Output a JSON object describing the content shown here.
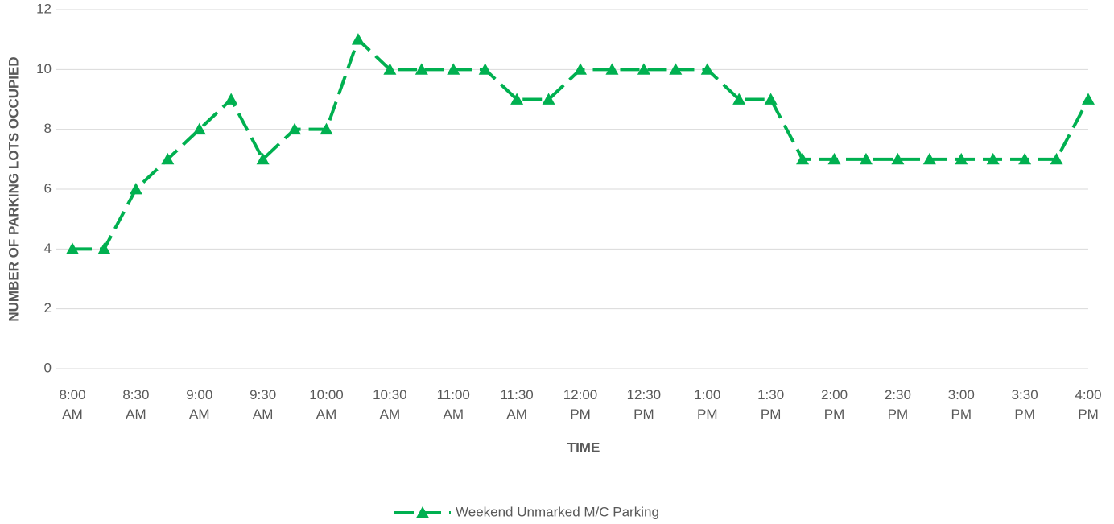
{
  "chart_data": {
    "type": "line",
    "x_label": "TIME",
    "y_label": "NUMBER OF PARKING LOTS OCCUPIED",
    "categories": [
      "8:00 AM",
      null,
      "8:30 AM",
      null,
      "9:00 AM",
      null,
      "9:30 AM",
      null,
      "10:00 AM",
      null,
      "10:30 AM",
      null,
      "11:00 AM",
      null,
      "11:30 AM",
      null,
      "12:00 PM",
      null,
      "12:30 PM",
      null,
      "1:00 PM",
      null,
      "1:30 PM",
      null,
      "2:00 PM",
      null,
      "2:30 PM",
      null,
      "3:00 PM",
      null,
      "3:30 PM",
      null,
      "4:00 PM"
    ],
    "series": [
      {
        "name": "Weekend Unmarked M/C Parking",
        "color": "#00b050",
        "values": [
          4,
          4,
          6,
          7,
          8,
          9,
          7,
          8,
          8,
          11,
          10,
          10,
          10,
          10,
          9,
          9,
          10,
          10,
          10,
          10,
          10,
          9,
          9,
          7,
          7,
          7,
          7,
          7,
          7,
          7,
          7,
          7,
          9
        ]
      }
    ],
    "ylim": [
      0,
      12
    ],
    "yticks": [
      0,
      2,
      4,
      6,
      8,
      10,
      12
    ],
    "grid": true,
    "legend": "bottom"
  }
}
